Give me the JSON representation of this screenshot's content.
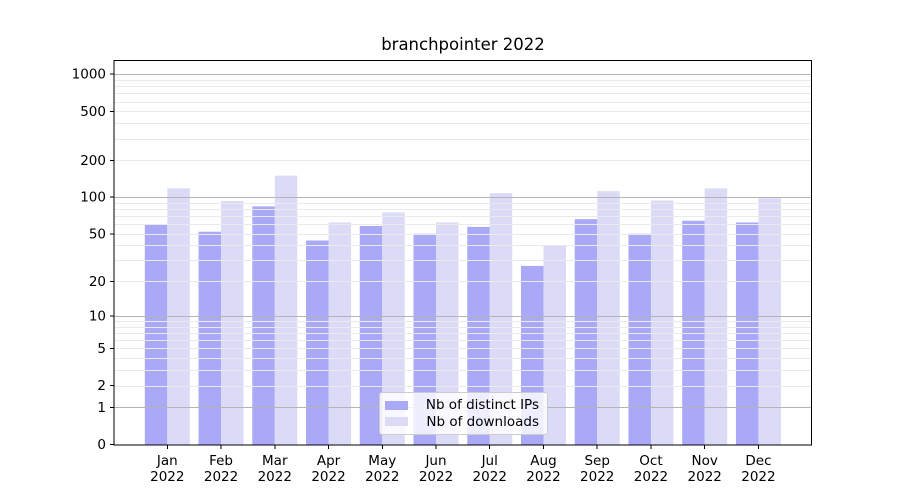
{
  "chart_data": {
    "type": "bar",
    "title": "branchpointer 2022",
    "categories": [
      "Jan",
      "Feb",
      "Mar",
      "Apr",
      "May",
      "Jun",
      "Jul",
      "Aug",
      "Sep",
      "Oct",
      "Nov",
      "Dec"
    ],
    "year": "2022",
    "series": [
      {
        "name": "Nb of distinct IPs",
        "key": "distinct-ips",
        "color": "#a9a9f7",
        "values": [
          60,
          52,
          84,
          44,
          58,
          50,
          57,
          27,
          66,
          50,
          64,
          62
        ]
      },
      {
        "name": "Nb of downloads",
        "key": "downloads",
        "color": "#dbdbf8",
        "values": [
          118,
          93,
          150,
          62,
          75,
          62,
          108,
          40,
          112,
          94,
          118,
          98
        ]
      }
    ],
    "y_ticks": [
      1000,
      500,
      200,
      100,
      50,
      20,
      10,
      5,
      2,
      1,
      0
    ],
    "y_scale": "log10(1+v)",
    "ylim": [
      0,
      1280
    ],
    "grid": {
      "major_color": "#b4b4b4",
      "minor_color": "#eaeaea",
      "orientation": "horizontal"
    },
    "legend": {
      "position": "lower center"
    }
  }
}
